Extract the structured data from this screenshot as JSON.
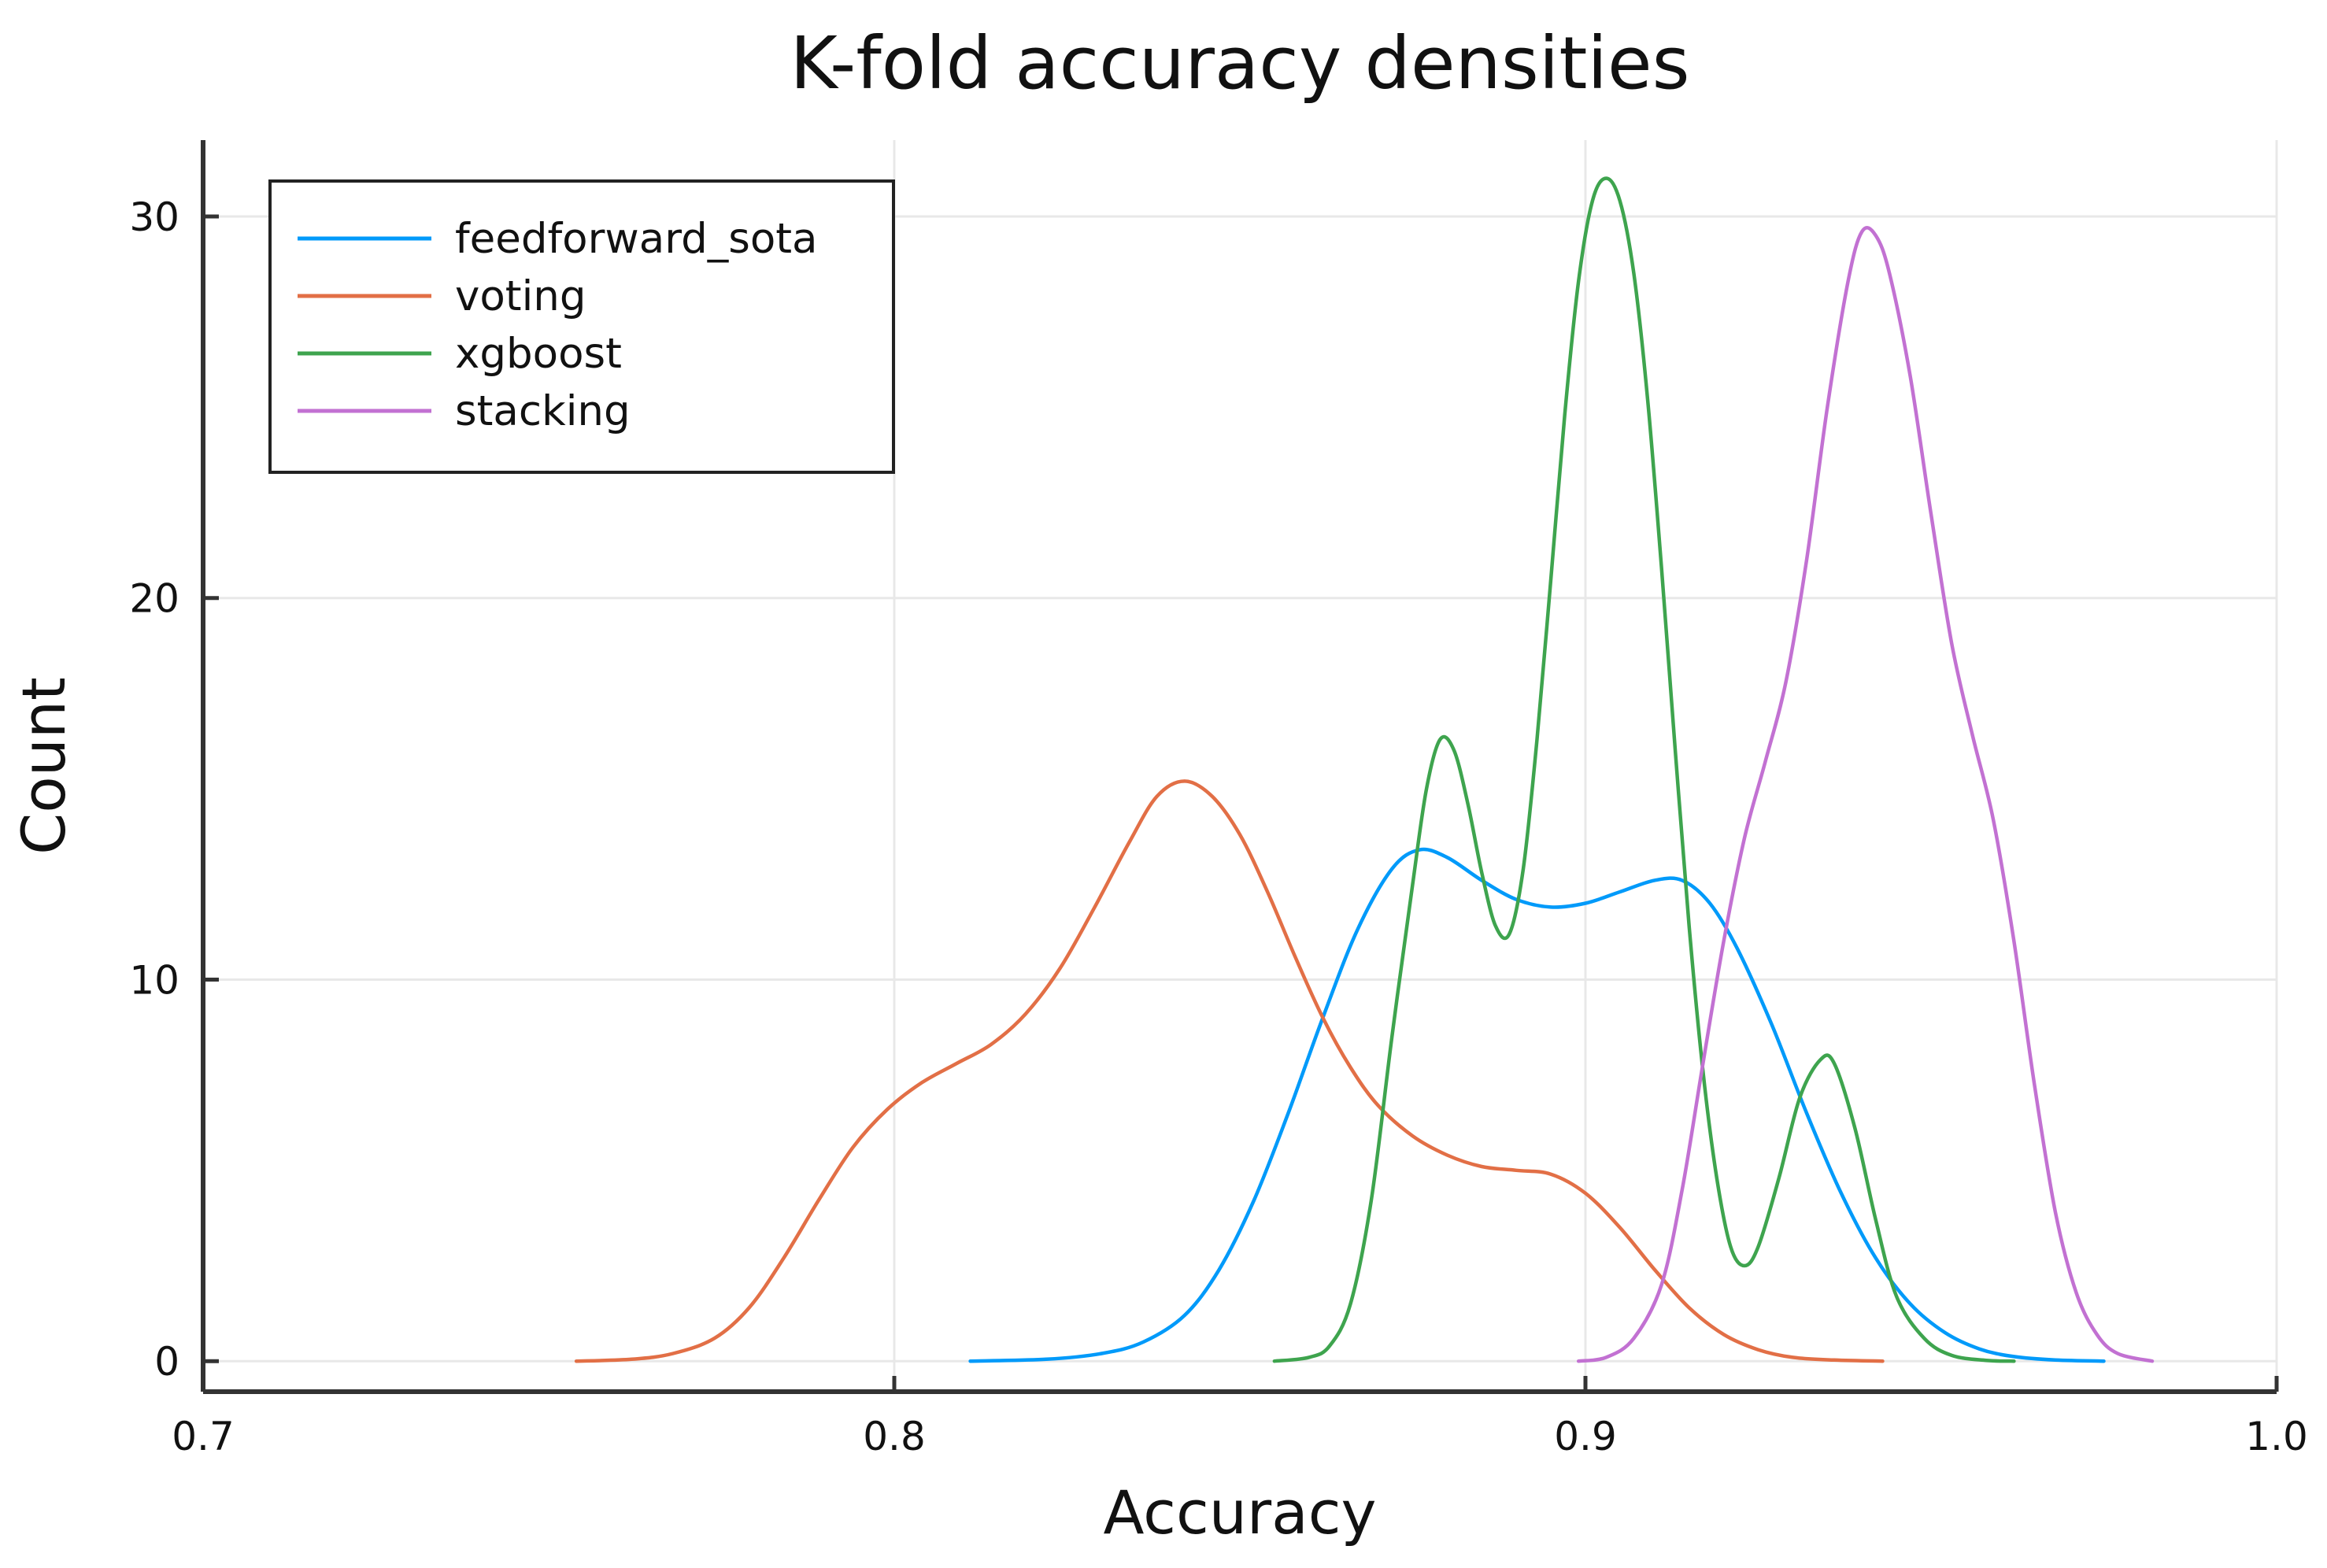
{
  "chart_data": {
    "type": "line",
    "title": "K-fold accuracy densities",
    "xlabel": "Accuracy",
    "ylabel": "Count",
    "xlim": [
      0.7,
      1.0
    ],
    "ylim": [
      -0.8,
      32
    ],
    "xticks": [
      0.7,
      0.8,
      0.9,
      1.0
    ],
    "xtick_labels": [
      "0.7",
      "0.8",
      "0.9",
      "1.0"
    ],
    "yticks": [
      0,
      10,
      20,
      30
    ],
    "ytick_labels": [
      "0",
      "10",
      "20",
      "30"
    ],
    "grid": true,
    "legend_position": "top-left",
    "series": [
      {
        "name": "feedforward_sota",
        "color": "#009AFA",
        "points": [
          [
            0.811,
            0
          ],
          [
            0.822,
            0.05
          ],
          [
            0.83,
            0.2
          ],
          [
            0.836,
            0.5
          ],
          [
            0.842,
            1.2
          ],
          [
            0.847,
            2.4
          ],
          [
            0.852,
            4.2
          ],
          [
            0.857,
            6.5
          ],
          [
            0.862,
            9.0
          ],
          [
            0.867,
            11.3
          ],
          [
            0.872,
            12.9
          ],
          [
            0.876,
            13.4
          ],
          [
            0.88,
            13.2
          ],
          [
            0.885,
            12.6
          ],
          [
            0.89,
            12.1
          ],
          [
            0.895,
            11.9
          ],
          [
            0.9,
            12.0
          ],
          [
            0.905,
            12.3
          ],
          [
            0.91,
            12.6
          ],
          [
            0.914,
            12.6
          ],
          [
            0.918,
            12.0
          ],
          [
            0.922,
            10.8
          ],
          [
            0.927,
            8.8
          ],
          [
            0.932,
            6.5
          ],
          [
            0.937,
            4.4
          ],
          [
            0.942,
            2.7
          ],
          [
            0.947,
            1.5
          ],
          [
            0.952,
            0.75
          ],
          [
            0.957,
            0.32
          ],
          [
            0.962,
            0.12
          ],
          [
            0.968,
            0.03
          ],
          [
            0.975,
            0
          ]
        ]
      },
      {
        "name": "voting",
        "color": "#E26F46",
        "points": [
          [
            0.754,
            0
          ],
          [
            0.762,
            0.05
          ],
          [
            0.768,
            0.2
          ],
          [
            0.774,
            0.6
          ],
          [
            0.779,
            1.4
          ],
          [
            0.784,
            2.7
          ],
          [
            0.789,
            4.2
          ],
          [
            0.794,
            5.6
          ],
          [
            0.799,
            6.6
          ],
          [
            0.804,
            7.3
          ],
          [
            0.809,
            7.8
          ],
          [
            0.814,
            8.3
          ],
          [
            0.819,
            9.1
          ],
          [
            0.824,
            10.3
          ],
          [
            0.829,
            11.9
          ],
          [
            0.834,
            13.6
          ],
          [
            0.838,
            14.8
          ],
          [
            0.842,
            15.2
          ],
          [
            0.846,
            14.8
          ],
          [
            0.85,
            13.8
          ],
          [
            0.854,
            12.3
          ],
          [
            0.858,
            10.6
          ],
          [
            0.862,
            9.0
          ],
          [
            0.866,
            7.7
          ],
          [
            0.87,
            6.7
          ],
          [
            0.875,
            5.9
          ],
          [
            0.88,
            5.4
          ],
          [
            0.885,
            5.1
          ],
          [
            0.89,
            5.0
          ],
          [
            0.895,
            4.9
          ],
          [
            0.9,
            4.4
          ],
          [
            0.905,
            3.5
          ],
          [
            0.91,
            2.4
          ],
          [
            0.915,
            1.4
          ],
          [
            0.92,
            0.7
          ],
          [
            0.925,
            0.3
          ],
          [
            0.93,
            0.1
          ],
          [
            0.936,
            0.03
          ],
          [
            0.943,
            0
          ]
        ]
      },
      {
        "name": "xgboost",
        "color": "#3EA44E",
        "points": [
          [
            0.855,
            0
          ],
          [
            0.86,
            0.1
          ],
          [
            0.863,
            0.4
          ],
          [
            0.866,
            1.5
          ],
          [
            0.869,
            4.2
          ],
          [
            0.872,
            8.5
          ],
          [
            0.875,
            12.5
          ],
          [
            0.877,
            15.0
          ],
          [
            0.879,
            16.3
          ],
          [
            0.881,
            16.0
          ],
          [
            0.883,
            14.6
          ],
          [
            0.885,
            12.8
          ],
          [
            0.887,
            11.4
          ],
          [
            0.889,
            11.2
          ],
          [
            0.891,
            12.9
          ],
          [
            0.893,
            16.3
          ],
          [
            0.895,
            20.5
          ],
          [
            0.897,
            24.8
          ],
          [
            0.899,
            28.3
          ],
          [
            0.901,
            30.4
          ],
          [
            0.903,
            31.0
          ],
          [
            0.905,
            30.4
          ],
          [
            0.907,
            28.5
          ],
          [
            0.909,
            25.2
          ],
          [
            0.911,
            20.8
          ],
          [
            0.913,
            16.0
          ],
          [
            0.915,
            11.4
          ],
          [
            0.917,
            7.6
          ],
          [
            0.919,
            4.8
          ],
          [
            0.921,
            3.0
          ],
          [
            0.923,
            2.5
          ],
          [
            0.925,
            3.0
          ],
          [
            0.928,
            4.8
          ],
          [
            0.931,
            6.9
          ],
          [
            0.934,
            7.9
          ],
          [
            0.936,
            7.8
          ],
          [
            0.939,
            6.1
          ],
          [
            0.942,
            3.7
          ],
          [
            0.945,
            1.7
          ],
          [
            0.949,
            0.6
          ],
          [
            0.953,
            0.15
          ],
          [
            0.958,
            0.02
          ],
          [
            0.962,
            0
          ]
        ]
      },
      {
        "name": "stacking",
        "color": "#C271D2",
        "points": [
          [
            0.899,
            0
          ],
          [
            0.903,
            0.1
          ],
          [
            0.907,
            0.6
          ],
          [
            0.911,
            2.0
          ],
          [
            0.914,
            4.5
          ],
          [
            0.917,
            7.8
          ],
          [
            0.92,
            11.0
          ],
          [
            0.923,
            13.7
          ],
          [
            0.926,
            15.7
          ],
          [
            0.929,
            17.8
          ],
          [
            0.932,
            21.0
          ],
          [
            0.935,
            25.0
          ],
          [
            0.938,
            28.3
          ],
          [
            0.94,
            29.6
          ],
          [
            0.942,
            29.5
          ],
          [
            0.944,
            28.5
          ],
          [
            0.947,
            25.8
          ],
          [
            0.95,
            22.2
          ],
          [
            0.953,
            18.8
          ],
          [
            0.956,
            16.4
          ],
          [
            0.959,
            14.2
          ],
          [
            0.962,
            11.0
          ],
          [
            0.965,
            7.2
          ],
          [
            0.968,
            3.9
          ],
          [
            0.971,
            1.8
          ],
          [
            0.974,
            0.7
          ],
          [
            0.977,
            0.2
          ],
          [
            0.982,
            0
          ]
        ]
      }
    ]
  }
}
